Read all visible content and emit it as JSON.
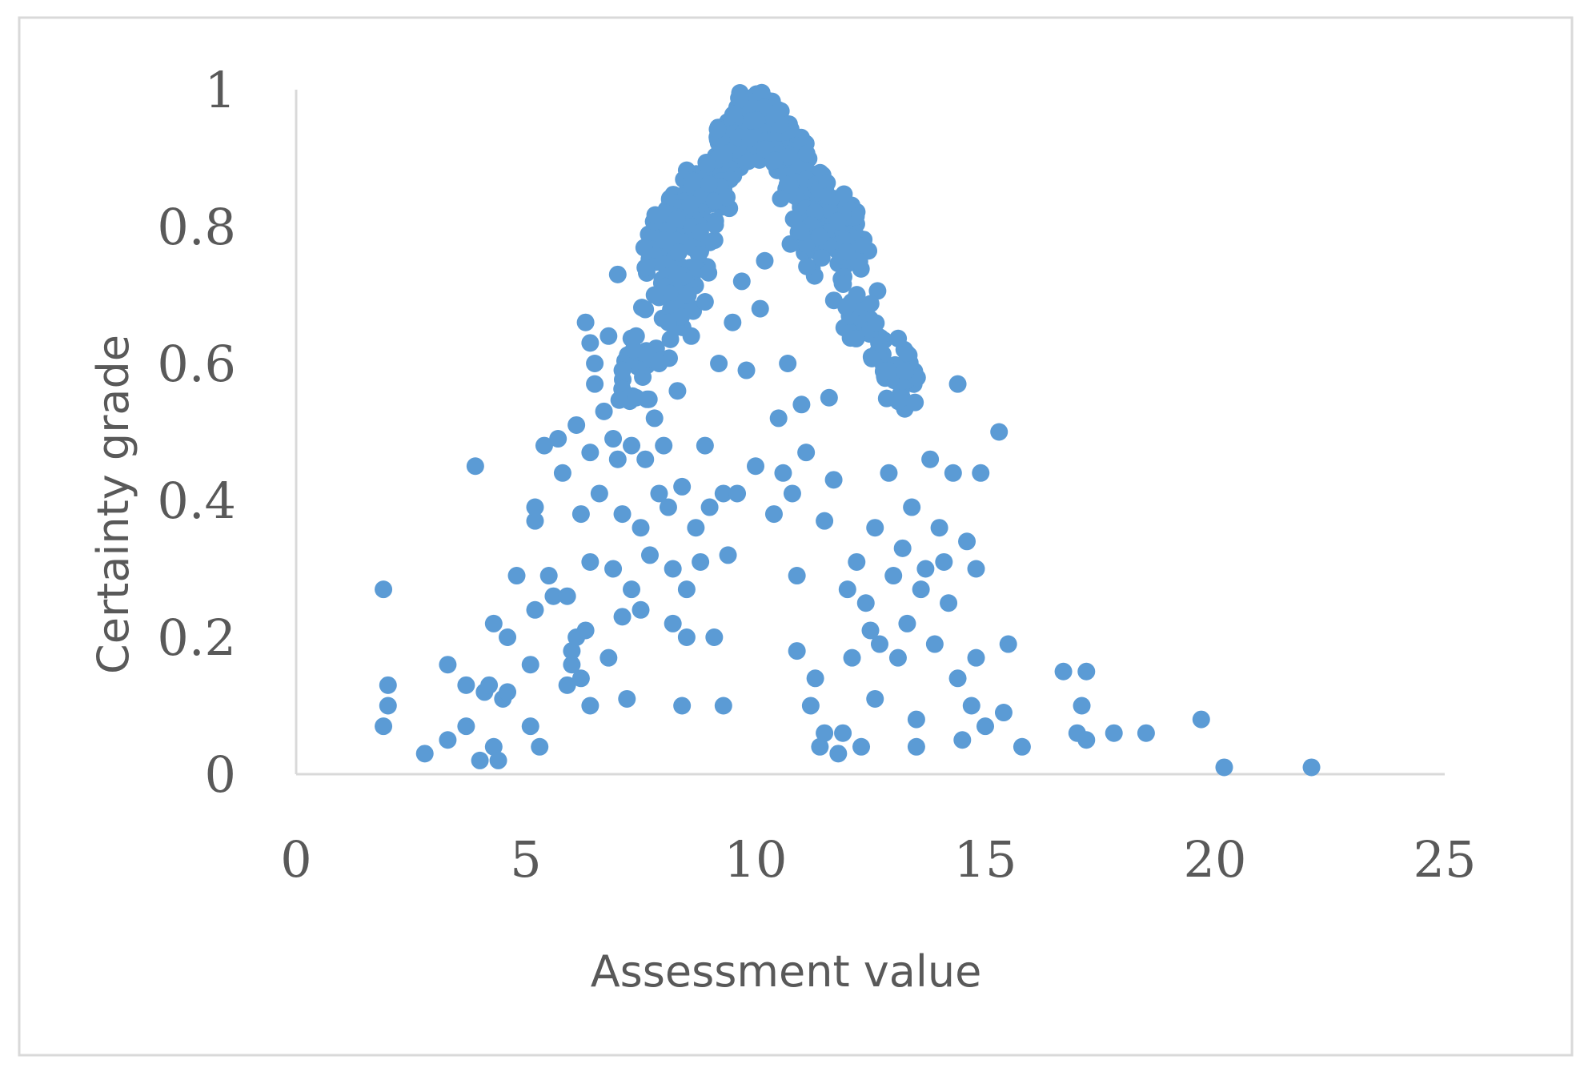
{
  "chart_data": {
    "type": "scatter",
    "title": "",
    "xlabel": "Assessment value",
    "ylabel": "Certainty grade",
    "xlim": [
      0,
      25
    ],
    "ylim": [
      0,
      1
    ],
    "x_ticks": [
      "0",
      "5",
      "10",
      "15",
      "20",
      "25"
    ],
    "y_ticks": [
      "0",
      "0.2",
      "0.4",
      "0.6",
      "0.8",
      "1"
    ],
    "grid": false,
    "legend": "none",
    "marker_color": "#5B9BD5",
    "series": [
      {
        "points": [
          [
            1.9,
            0.27
          ],
          [
            2.0,
            0.13
          ],
          [
            2.0,
            0.1
          ],
          [
            1.9,
            0.07
          ],
          [
            2.8,
            0.03
          ],
          [
            3.3,
            0.16
          ],
          [
            3.3,
            0.05
          ],
          [
            3.7,
            0.13
          ],
          [
            3.7,
            0.07
          ],
          [
            3.9,
            0.45
          ],
          [
            4.0,
            0.02
          ],
          [
            4.1,
            0.12
          ],
          [
            4.2,
            0.13
          ],
          [
            4.3,
            0.04
          ],
          [
            4.3,
            0.22
          ],
          [
            4.4,
            0.02
          ],
          [
            4.5,
            0.11
          ],
          [
            4.6,
            0.12
          ],
          [
            4.6,
            0.2
          ],
          [
            4.8,
            0.29
          ],
          [
            5.1,
            0.07
          ],
          [
            5.1,
            0.16
          ],
          [
            5.2,
            0.24
          ],
          [
            5.2,
            0.37
          ],
          [
            5.2,
            0.39
          ],
          [
            5.3,
            0.04
          ],
          [
            5.4,
            0.48
          ],
          [
            5.5,
            0.29
          ],
          [
            5.6,
            0.26
          ],
          [
            5.7,
            0.49
          ],
          [
            5.8,
            0.44
          ],
          [
            5.9,
            0.26
          ],
          [
            5.9,
            0.13
          ],
          [
            6.0,
            0.18
          ],
          [
            6.0,
            0.16
          ],
          [
            6.1,
            0.2
          ],
          [
            6.1,
            0.51
          ],
          [
            6.2,
            0.38
          ],
          [
            6.2,
            0.14
          ],
          [
            6.3,
            0.21
          ],
          [
            6.3,
            0.66
          ],
          [
            6.4,
            0.63
          ],
          [
            6.4,
            0.31
          ],
          [
            6.4,
            0.1
          ],
          [
            6.4,
            0.47
          ],
          [
            6.5,
            0.6
          ],
          [
            6.5,
            0.57
          ],
          [
            6.6,
            0.41
          ],
          [
            6.7,
            0.53
          ],
          [
            6.8,
            0.64
          ],
          [
            6.8,
            0.17
          ],
          [
            6.9,
            0.49
          ],
          [
            6.9,
            0.3
          ],
          [
            7.0,
            0.73
          ],
          [
            7.0,
            0.46
          ],
          [
            7.1,
            0.59
          ],
          [
            7.1,
            0.38
          ],
          [
            7.1,
            0.23
          ],
          [
            7.2,
            0.11
          ],
          [
            7.3,
            0.27
          ],
          [
            7.3,
            0.48
          ],
          [
            7.4,
            0.64
          ],
          [
            7.4,
            0.55
          ],
          [
            7.5,
            0.36
          ],
          [
            7.5,
            0.24
          ],
          [
            7.6,
            0.74
          ],
          [
            7.6,
            0.46
          ],
          [
            7.7,
            0.32
          ],
          [
            7.8,
            0.7
          ],
          [
            7.8,
            0.52
          ],
          [
            7.9,
            0.41
          ],
          [
            7.9,
            0.6
          ],
          [
            8.0,
            0.78
          ],
          [
            8.0,
            0.48
          ],
          [
            8.1,
            0.39
          ],
          [
            8.1,
            0.66
          ],
          [
            8.2,
            0.22
          ],
          [
            8.2,
            0.3
          ],
          [
            8.3,
            0.73
          ],
          [
            8.3,
            0.56
          ],
          [
            8.4,
            0.1
          ],
          [
            8.4,
            0.42
          ],
          [
            8.5,
            0.27
          ],
          [
            8.5,
            0.2
          ],
          [
            8.6,
            0.64
          ],
          [
            8.7,
            0.36
          ],
          [
            8.8,
            0.31
          ],
          [
            8.9,
            0.48
          ],
          [
            8.9,
            0.69
          ],
          [
            9.0,
            0.39
          ],
          [
            9.1,
            0.2
          ],
          [
            9.2,
            0.6
          ],
          [
            9.3,
            0.1
          ],
          [
            9.3,
            0.41
          ],
          [
            9.4,
            0.32
          ],
          [
            9.5,
            0.66
          ],
          [
            9.6,
            0.41
          ],
          [
            9.7,
            0.72
          ],
          [
            9.8,
            0.59
          ],
          [
            10.0,
            0.45
          ],
          [
            10.1,
            0.68
          ],
          [
            10.2,
            0.75
          ],
          [
            10.4,
            0.38
          ],
          [
            10.5,
            0.52
          ],
          [
            10.6,
            0.44
          ],
          [
            10.7,
            0.6
          ],
          [
            10.8,
            0.41
          ],
          [
            10.9,
            0.29
          ],
          [
            10.9,
            0.18
          ],
          [
            11.0,
            0.54
          ],
          [
            11.1,
            0.47
          ],
          [
            11.2,
            0.1
          ],
          [
            11.3,
            0.14
          ],
          [
            11.4,
            0.04
          ],
          [
            11.5,
            0.37
          ],
          [
            11.5,
            0.06
          ],
          [
            11.6,
            0.55
          ],
          [
            11.7,
            0.43
          ],
          [
            11.8,
            0.03
          ],
          [
            11.9,
            0.06
          ],
          [
            12.0,
            0.27
          ],
          [
            12.1,
            0.17
          ],
          [
            12.2,
            0.31
          ],
          [
            12.3,
            0.04
          ],
          [
            12.4,
            0.25
          ],
          [
            12.5,
            0.21
          ],
          [
            12.6,
            0.11
          ],
          [
            12.6,
            0.36
          ],
          [
            12.7,
            0.19
          ],
          [
            12.9,
            0.44
          ],
          [
            13.0,
            0.29
          ],
          [
            13.1,
            0.17
          ],
          [
            13.2,
            0.33
          ],
          [
            13.3,
            0.22
          ],
          [
            13.4,
            0.39
          ],
          [
            13.5,
            0.08
          ],
          [
            13.5,
            0.04
          ],
          [
            13.6,
            0.27
          ],
          [
            13.7,
            0.3
          ],
          [
            13.8,
            0.46
          ],
          [
            13.9,
            0.19
          ],
          [
            14.0,
            0.36
          ],
          [
            14.1,
            0.31
          ],
          [
            14.2,
            0.25
          ],
          [
            14.3,
            0.44
          ],
          [
            14.4,
            0.14
          ],
          [
            14.4,
            0.57
          ],
          [
            14.5,
            0.05
          ],
          [
            14.6,
            0.34
          ],
          [
            14.7,
            0.1
          ],
          [
            14.8,
            0.3
          ],
          [
            14.8,
            0.17
          ],
          [
            14.9,
            0.44
          ],
          [
            15.0,
            0.07
          ],
          [
            15.3,
            0.5
          ],
          [
            15.4,
            0.09
          ],
          [
            15.5,
            0.19
          ],
          [
            15.8,
            0.04
          ],
          [
            16.7,
            0.15
          ],
          [
            17.0,
            0.06
          ],
          [
            17.1,
            0.1
          ],
          [
            17.2,
            0.05
          ],
          [
            17.2,
            0.15
          ],
          [
            17.8,
            0.06
          ],
          [
            18.5,
            0.06
          ],
          [
            19.7,
            0.08
          ],
          [
            20.2,
            0.01
          ],
          [
            22.1,
            0.01
          ]
        ]
      }
    ],
    "dense_core": {
      "description_in_data_units": "dense cluster of points along the curve near the peak",
      "left_branch": {
        "x_from": 7.9,
        "x_to": 10.0,
        "y_from": 0.8,
        "y_to": 1.0
      },
      "right_branch": {
        "x_from": 10.0,
        "x_to": 12.2,
        "y_from": 1.0,
        "y_to": 0.8
      },
      "tail_left": {
        "x_from": 7.2,
        "x_to": 9.2,
        "y_from": 0.6,
        "y_to": 0.88
      },
      "tail_right": {
        "x_from": 10.8,
        "x_to": 13.5,
        "y_from": 0.88,
        "y_to": 0.58
      }
    }
  }
}
